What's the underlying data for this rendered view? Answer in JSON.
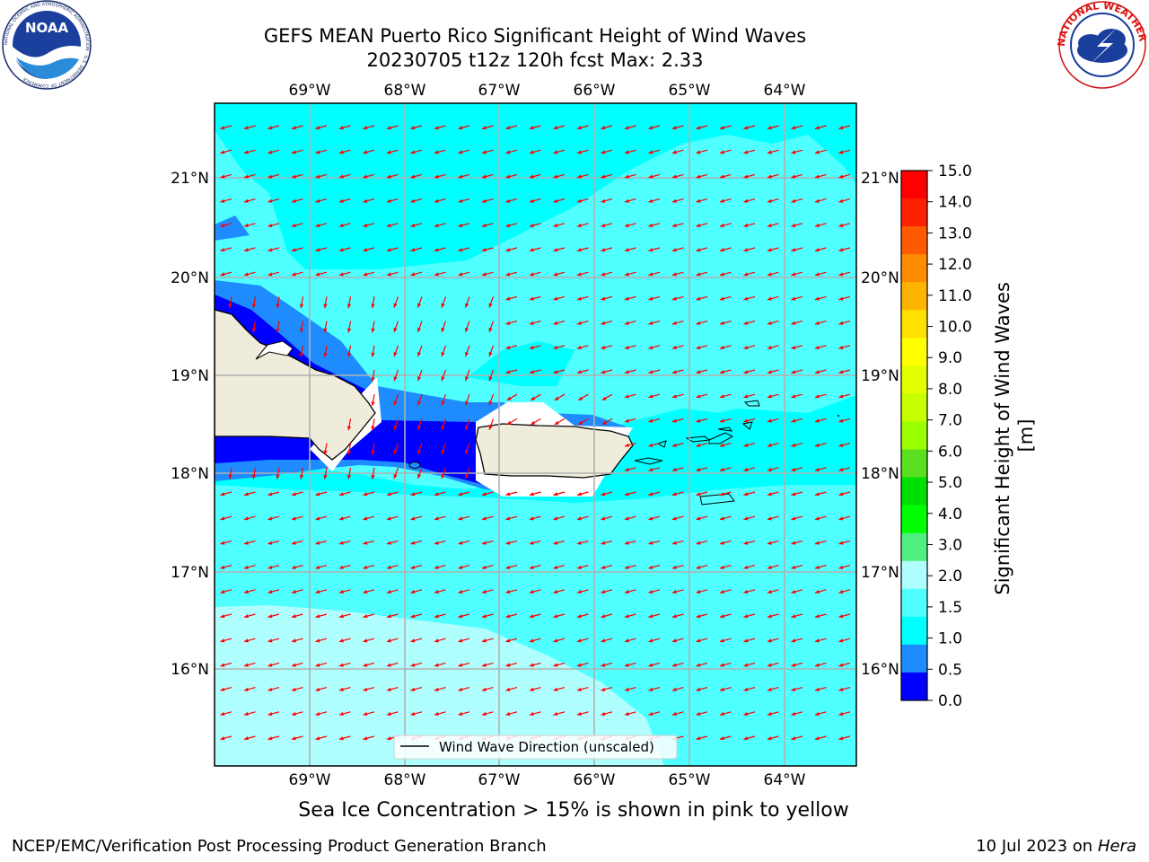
{
  "title": {
    "line1": "GEFS MEAN Puerto Rico Significant Height of Wind Waves",
    "line2": "20230705 t12z 120h fcst   Max: 2.33"
  },
  "logos": {
    "left": {
      "name": "NOAA",
      "ring_text": "NATIONAL OCEANIC AND ATMOSPHERIC ADMINISTRATION · U.S. DEPARTMENT OF COMMERCE",
      "icon": "noaa-seal"
    },
    "right": {
      "ring_text": "NATIONAL WEATHER SERVICE",
      "icon": "nws-seal"
    }
  },
  "map": {
    "lon_labels": [
      "69°W",
      "68°W",
      "67°W",
      "66°W",
      "65°W",
      "64°W"
    ],
    "lat_labels": [
      "21°N",
      "20°N",
      "19°N",
      "18°N",
      "17°N",
      "16°N"
    ],
    "legend_label": "Wind Wave Direction (unscaled)",
    "arrow_color": "#ff0000",
    "grid_color": "#b0b0b0",
    "land_color": "#efecdc"
  },
  "colorbar": {
    "label": "Significant Height of Wind Waves [m]",
    "ticks": [
      "15.0",
      "14.0",
      "13.0",
      "12.0",
      "11.0",
      "10.0",
      "9.0",
      "8.0",
      "7.0",
      "6.0",
      "5.0",
      "4.0",
      "3.0",
      "2.0",
      "1.5",
      "1.0",
      "0.5",
      "0.0"
    ],
    "colors_top_to_bottom": [
      "#ff0000",
      "#ff2000",
      "#ff5a00",
      "#ff8c00",
      "#ffb400",
      "#ffe000",
      "#ffff00",
      "#e4ff00",
      "#c8ff00",
      "#9aff00",
      "#5ae01e",
      "#00e000",
      "#00ff00",
      "#50f080",
      "#b0ffff",
      "#50ffff",
      "#00ffff",
      "#1e8cff",
      "#0000ff"
    ]
  },
  "caption": "Sea Ice Concentration > 15% is shown in pink to yellow",
  "footer": {
    "left": "NCEP/EMC/Verification Post Processing Product Generation Branch",
    "right_date": "10 Jul 2023 on ",
    "right_host": "Hera"
  }
}
